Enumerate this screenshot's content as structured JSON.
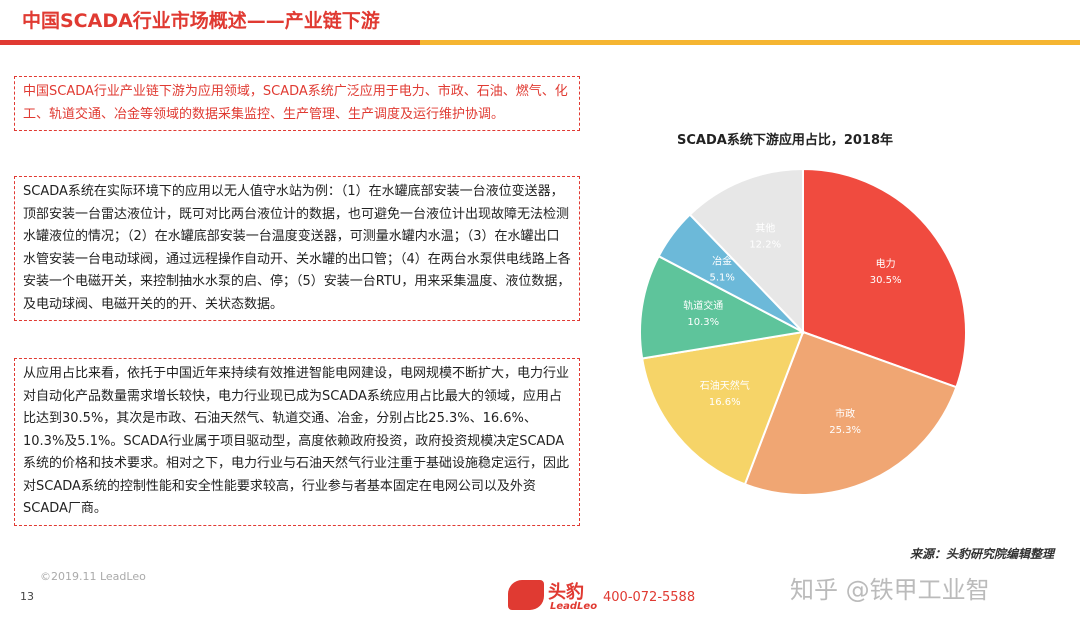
{
  "header": {
    "title": "中国SCADA行业市场概述——产业链下游"
  },
  "text_boxes": [
    "中国SCADA行业产业链下游为应用领域，SCADA系统广泛应用于电力、市政、石油、燃气、化工、轨道交通、冶金等领域的数据采集监控、生产管理、生产调度及运行维护协调。",
    "SCADA系统在实际环境下的应用以无人值守水站为例：（1）在水罐底部安装一台液位变送器，顶部安装一台雷达液位计，既可对比两台液位计的数据，也可避免一台液位计出现故障无法检测水罐液位的情况；（2）在水罐底部安装一台温度变送器，可测量水罐内水温；（3）在水罐出口水管安装一台电动球阀，通过远程操作自动开、关水罐的出口管；（4）在两台水泵供电线路上各安装一个电磁开关，来控制抽水水泵的启、停；（5）安装一台RTU，用来采集温度、液位数据，及电动球阀、电磁开关的的开、关状态数据。",
    "从应用占比来看，依托于中国近年来持续有效推进智能电网建设，电网规模不断扩大，电力行业对自动化产品数量需求增长较快，电力行业现已成为SCADA系统应用占比最大的领域，应用占比达到30.5%，其次是市政、石油天然气、轨道交通、冶金，分别占比25.3%、16.6%、10.3%及5.1%。SCADA行业属于项目驱动型，高度依赖政府投资，政府投资规模决定SCADA系统的价格和技术要求。相对之下，电力行业与石油天然气行业注重于基础设施稳定运行，因此对SCADA系统的控制性能和安全性能要求较高，行业参与者基本固定在电网公司以及外资SCADA厂商。"
  ],
  "chart_data": {
    "type": "pie",
    "title": "SCADA系统下游应用占比，2018年",
    "categories": [
      "电力",
      "市政",
      "石油天然气",
      "轨道交通",
      "冶金",
      "其他"
    ],
    "values": [
      30.5,
      25.3,
      16.6,
      10.3,
      5.1,
      12.2
    ],
    "value_labels": [
      "30.5%",
      "25.3%",
      "16.6%",
      "10.3%",
      "5.1%",
      "12.2%"
    ],
    "colors": [
      "#f04b3f",
      "#f0a673",
      "#f6d468",
      "#5ec49b",
      "#6cb9d9",
      "#e7e7e7"
    ]
  },
  "source": "来源：头豹研究院编辑整理",
  "footer": {
    "copyright": "©2019.11 LeadLeo",
    "page": "13",
    "logo_cn": "头豹",
    "logo_en": "LeadLeo",
    "phone": "400-072-5588",
    "watermark": "知乎 @铁甲工业智"
  }
}
